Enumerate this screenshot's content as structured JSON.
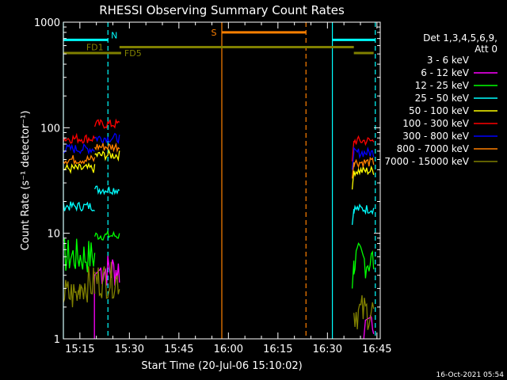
{
  "chart_data": {
    "type": "line",
    "title": "RHESSI Observing Summary Count Rates",
    "xlabel": "Start Time (20-Jul-06 15:10:02)",
    "ylabel": "Count Rate (s⁻¹ detector⁻¹)",
    "yscale": "log",
    "ylim": [
      1,
      1000
    ],
    "xlim_minutes": [
      0,
      96
    ],
    "x_ticks": [
      {
        "t": 5,
        "label": "15:15"
      },
      {
        "t": 20,
        "label": "15:30"
      },
      {
        "t": 35,
        "label": "15:45"
      },
      {
        "t": 50,
        "label": "16:00"
      },
      {
        "t": 65,
        "label": "16:15"
      },
      {
        "t": 80,
        "label": "16:30"
      },
      {
        "t": 95,
        "label": "16:45"
      }
    ],
    "y_ticks": [
      {
        "v": 1,
        "label": "1"
      },
      {
        "v": 10,
        "label": "10"
      },
      {
        "v": 100,
        "label": "100"
      },
      {
        "v": 1000,
        "label": "1000"
      }
    ],
    "legend": {
      "placement": "right",
      "header": [
        "Det 1,3,4,5,6,9,",
        "Att 0"
      ],
      "entries": [
        {
          "name": "3 - 6 keV",
          "color": "#000000"
        },
        {
          "name": "6 - 12 keV",
          "color": "#ff00ff"
        },
        {
          "name": "12 - 25 keV",
          "color": "#00ff00"
        },
        {
          "name": "25 - 50 keV",
          "color": "#00ffff"
        },
        {
          "name": "50 - 100 keV",
          "color": "#ffff00"
        },
        {
          "name": "100 - 300 keV",
          "color": "#ff0000"
        },
        {
          "name": "300 - 800 keV",
          "color": "#0000ff"
        },
        {
          "name": "800 - 7000 keV",
          "color": "#ff8000"
        },
        {
          "name": "7000 - 15000 keV",
          "color": "#808000"
        }
      ]
    },
    "series": [
      {
        "band": "6 - 12 keV",
        "color": "#ff00ff",
        "segments": [
          {
            "x": [
              9.4,
              9.4,
              11,
              17
            ],
            "y": [
              1,
              4,
              4.5,
              4.5
            ]
          },
          {
            "x": [
              91,
              91.5,
              93,
              94
            ],
            "y": [
              1,
              1.5,
              1.6,
              1.6
            ]
          }
        ]
      },
      {
        "band": "12 - 25 keV",
        "color": "#00ff00",
        "segments": [
          {
            "x": [
              0,
              9.5
            ],
            "y": [
              6,
              6
            ]
          },
          {
            "x": [
              9.5,
              17
            ],
            "y": [
              9.5,
              9.5
            ]
          },
          {
            "x": [
              87.5,
              88,
              94
            ],
            "y": [
              3,
              5.5,
              5.5
            ]
          }
        ]
      },
      {
        "band": "25 - 50 keV",
        "color": "#00ffff",
        "segments": [
          {
            "x": [
              0,
              9.5
            ],
            "y": [
              18,
              18
            ]
          },
          {
            "x": [
              9.5,
              17
            ],
            "y": [
              26,
              26
            ]
          },
          {
            "x": [
              87.5,
              88,
              94
            ],
            "y": [
              12,
              17,
              17
            ]
          }
        ]
      },
      {
        "band": "50 - 100 keV",
        "color": "#ffff00",
        "segments": [
          {
            "x": [
              0,
              9.5
            ],
            "y": [
              41,
              41
            ]
          },
          {
            "x": [
              9.5,
              17
            ],
            "y": [
              55,
              55
            ]
          },
          {
            "x": [
              87.5,
              88,
              94
            ],
            "y": [
              26,
              39,
              39
            ]
          }
        ]
      },
      {
        "band": "100 - 300 keV",
        "color": "#ff0000",
        "segments": [
          {
            "x": [
              0,
              9.5
            ],
            "y": [
              79,
              79
            ]
          },
          {
            "x": [
              9.5,
              17
            ],
            "y": [
              108,
              108
            ]
          },
          {
            "x": [
              87.5,
              88,
              94
            ],
            "y": [
              48,
              75,
              75
            ]
          }
        ]
      },
      {
        "band": "300 - 800 keV",
        "color": "#0000ff",
        "segments": [
          {
            "x": [
              0,
              9.5
            ],
            "y": [
              63,
              63
            ]
          },
          {
            "x": [
              9.5,
              17
            ],
            "y": [
              80,
              80
            ]
          },
          {
            "x": [
              87.5,
              88,
              94
            ],
            "y": [
              40,
              58,
              58
            ]
          }
        ]
      },
      {
        "band": "800 - 7000 keV",
        "color": "#ff8000",
        "segments": [
          {
            "x": [
              0,
              9.5
            ],
            "y": [
              50,
              50
            ]
          },
          {
            "x": [
              9.5,
              17
            ],
            "y": [
              66,
              66
            ]
          },
          {
            "x": [
              87.5,
              88,
              94
            ],
            "y": [
              33,
              47,
              47
            ]
          }
        ]
      },
      {
        "band": "7000 - 15000 keV",
        "color": "#808000",
        "segments": [
          {
            "x": [
              0,
              4.5,
              5,
              9.5
            ],
            "y": [
              2.6,
              2.6,
              3.3,
              3.3
            ]
          },
          {
            "x": [
              9.5,
              17
            ],
            "y": [
              3.6,
              3.6
            ]
          },
          {
            "x": [
              88,
              94
            ],
            "y": [
              1.8,
              1.8
            ]
          }
        ]
      }
    ],
    "flag_bars": [
      {
        "label": "N",
        "color": "#00ffff",
        "y": 680,
        "segments": [
          [
            0,
            13.5
          ],
          [
            81.5,
            94.5
          ]
        ]
      },
      {
        "label": "FD1",
        "color": "#808000",
        "y": 580,
        "segments": [
          [
            17,
            88
          ]
        ]
      },
      {
        "label": "FD5",
        "color": "#808000",
        "y": 510,
        "segments": [
          [
            0,
            17.5
          ],
          [
            88,
            94
          ]
        ]
      },
      {
        "label": "S",
        "color": "#ff8000",
        "y": 800,
        "segments": [
          [
            48,
            73.5
          ]
        ]
      }
    ],
    "vertical_markers": [
      {
        "t": 0,
        "color": "#00ffff",
        "style": "solid"
      },
      {
        "t": 13.5,
        "color": "#00ffff",
        "style": "dashed"
      },
      {
        "t": 48,
        "color": "#ff8000",
        "style": "solid"
      },
      {
        "t": 73.5,
        "color": "#ff8000",
        "style": "dashed"
      },
      {
        "t": 81.5,
        "color": "#00ffff",
        "style": "solid"
      },
      {
        "t": 94.5,
        "color": "#00ffff",
        "style": "dashed"
      }
    ]
  },
  "footer": {
    "timestamp": "16-Oct-2021 05:54"
  }
}
